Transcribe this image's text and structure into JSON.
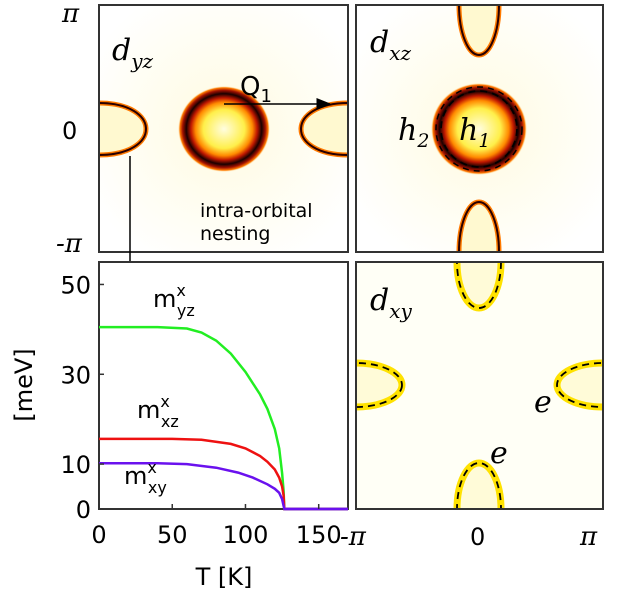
{
  "figure": {
    "panels": {
      "dyz": {
        "label": "d",
        "sub": "yz",
        "arrow_label": "Q",
        "arrow_sub": "1",
        "annotation_line1": "intra-orbital",
        "annotation_line2": "nesting"
      },
      "dxz": {
        "label": "d",
        "sub": "xz",
        "h2_label": "h",
        "h2_sub": "2",
        "h1_label": "h",
        "h1_sub": "1"
      },
      "dxy": {
        "label": "d",
        "sub": "xy",
        "e_labels": [
          "e",
          "e"
        ]
      }
    },
    "ky_ticks": [
      "π",
      "0",
      "-π"
    ],
    "kx_ticks": [
      "-π",
      "0",
      "π"
    ]
  },
  "chart_data": {
    "type": "line",
    "xlabel": "T [K]",
    "ylabel": "[meV]",
    "xlim": [
      0,
      170
    ],
    "ylim": [
      0,
      55
    ],
    "xticks": [
      "0",
      "50",
      "100",
      "150"
    ],
    "yticks": [
      "0",
      "10",
      "30",
      "50"
    ],
    "grid": false,
    "series": [
      {
        "name": "m^x_yz",
        "label_base": "m",
        "label_sup": "x",
        "label_sub": "yz",
        "color": "#22ee22",
        "x": [
          0,
          40,
          60,
          70,
          80,
          90,
          100,
          110,
          115,
          120,
          123,
          125,
          126,
          126.5,
          170
        ],
        "y": [
          40.5,
          40.5,
          40.2,
          39.3,
          37.5,
          34.6,
          30.5,
          25.5,
          22.3,
          17.8,
          13.5,
          8,
          4,
          0,
          0
        ]
      },
      {
        "name": "m^x_xz",
        "label_base": "m",
        "label_sup": "x",
        "label_sub": "xz",
        "color": "#ee1111",
        "x": [
          0,
          50,
          70,
          90,
          100,
          110,
          115,
          120,
          123,
          125,
          126,
          126.5,
          170
        ],
        "y": [
          15.6,
          15.6,
          15.4,
          14.5,
          13.5,
          11.8,
          10.5,
          8.8,
          7,
          5,
          3,
          0,
          0
        ]
      },
      {
        "name": "m^x_xy",
        "label_base": "m",
        "label_sup": "x",
        "label_sub": "xy",
        "color": "#6a11ee",
        "x": [
          0,
          40,
          60,
          80,
          95,
          105,
          115,
          120,
          123,
          125,
          126.5,
          170
        ],
        "y": [
          10.2,
          10.2,
          10,
          9.2,
          8.1,
          7,
          5.5,
          4.5,
          3.6,
          2.2,
          0,
          0
        ]
      }
    ]
  }
}
